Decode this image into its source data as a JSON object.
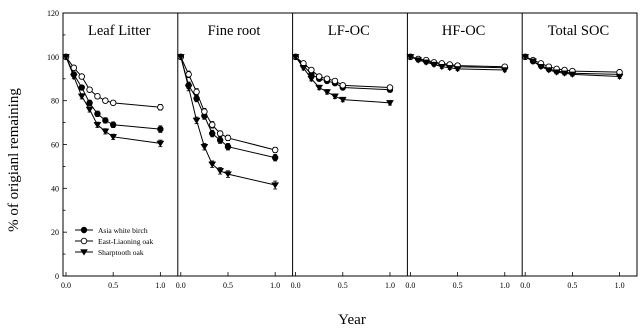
{
  "chart_data": {
    "type": "line",
    "ylabel": "% of origianl remaining",
    "xlabel": "Year",
    "ylim": [
      0,
      120
    ],
    "xlim": [
      0,
      1.1
    ],
    "y_ticks": [
      "0",
      "20",
      "40",
      "60",
      "80",
      "100",
      "120"
    ],
    "x_ticks": [
      "0.0",
      "0.5",
      "1.0"
    ],
    "x": [
      0,
      0.083,
      0.167,
      0.25,
      0.333,
      0.417,
      0.5,
      1.0
    ],
    "legend": {
      "placement": "bottom-left",
      "entries": [
        {
          "name": "Asia white birch",
          "marker": "circle-filled"
        },
        {
          "name": "East-Liaoning oak",
          "marker": "circle-open"
        },
        {
          "name": "Sharptooth oak",
          "marker": "triangle-down-filled"
        }
      ]
    },
    "panels": [
      {
        "title": "Leaf Litter",
        "series": [
          {
            "name": "Asia white birch",
            "values": [
              100,
              92,
              86,
              79,
              74,
              71,
              69,
              67
            ],
            "errors": [
              0,
              1,
              1,
              1.2,
              1.2,
              1.2,
              1.3,
              1.5
            ]
          },
          {
            "name": "East-Liaoning oak",
            "values": [
              100,
              95,
              91,
              85,
              82,
              80,
              79,
              77
            ],
            "errors": [
              0,
              1,
              1,
              1,
              1,
              1,
              1,
              1.3
            ]
          },
          {
            "name": "Sharptooth oak",
            "values": [
              100,
              91,
              82,
              76,
              69,
              66,
              63.5,
              60.5
            ],
            "errors": [
              0,
              1,
              1.2,
              1.2,
              1.2,
              1.2,
              1.2,
              1.5
            ]
          }
        ]
      },
      {
        "title": "Fine root",
        "series": [
          {
            "name": "Asia white birch",
            "values": [
              100,
              87,
              81,
              73,
              65,
              62,
              59,
              54
            ],
            "errors": [
              0,
              1.5,
              1.5,
              1.5,
              1.5,
              1.5,
              1.5,
              1.5
            ]
          },
          {
            "name": "East-Liaoning oak",
            "values": [
              100,
              92,
              84,
              75,
              69,
              65,
              63,
              57.5
            ],
            "errors": [
              0,
              1.5,
              1.5,
              1.5,
              1.5,
              1.2,
              1.2,
              1.2
            ]
          },
          {
            "name": "Sharptooth oak",
            "values": [
              100,
              86,
              71,
              59,
              51,
              48,
              46.5,
              41.5
            ],
            "errors": [
              0,
              1.5,
              1.5,
              1.5,
              1.5,
              1.5,
              1.5,
              1.8
            ]
          }
        ]
      },
      {
        "title": "LF-OC",
        "series": [
          {
            "name": "Asia white birch",
            "values": [
              100,
              96,
              92,
              90,
              89,
              88,
              86,
              85
            ],
            "errors": [
              0,
              1,
              1,
              1,
              1,
              1,
              1,
              1
            ]
          },
          {
            "name": "East-Liaoning oak",
            "values": [
              100,
              97,
              94,
              91,
              90,
              89,
              87,
              86
            ],
            "errors": [
              0,
              1,
              1,
              1,
              1,
              1,
              1,
              1
            ]
          },
          {
            "name": "Sharptooth oak",
            "values": [
              100,
              95,
              90,
              86,
              84,
              82,
              80.5,
              79
            ],
            "errors": [
              0,
              1,
              1,
              1,
              1,
              1,
              1,
              1
            ]
          }
        ]
      },
      {
        "title": "HF-OC",
        "series": [
          {
            "name": "Asia white birch",
            "values": [
              100,
              99,
              98,
              97,
              96.5,
              96,
              95.5,
              95
            ],
            "errors": [
              0,
              0.8,
              0.8,
              0.8,
              0.8,
              0.8,
              0.8,
              0.8
            ]
          },
          {
            "name": "East-Liaoning oak",
            "values": [
              100,
              99,
              98.5,
              97.5,
              97,
              96.5,
              96,
              95.5
            ],
            "errors": [
              0,
              0.8,
              0.8,
              0.8,
              0.8,
              0.8,
              0.8,
              0.8
            ]
          },
          {
            "name": "Sharptooth oak",
            "values": [
              100,
              98.5,
              97.5,
              96.5,
              95.5,
              95,
              94.5,
              94
            ],
            "errors": [
              0,
              0.8,
              0.8,
              0.8,
              0.8,
              0.8,
              0.8,
              0.8
            ]
          }
        ]
      },
      {
        "title": "Total SOC",
        "series": [
          {
            "name": "Asia white birch",
            "values": [
              100,
              98,
              96,
              94.5,
              93.5,
              93,
              92.5,
              92
            ],
            "errors": [
              0,
              0.8,
              0.8,
              0.8,
              0.8,
              0.8,
              0.8,
              0.8
            ]
          },
          {
            "name": "East-Liaoning oak",
            "values": [
              100,
              98.5,
              97,
              95.5,
              94.5,
              94,
              93.5,
              93
            ],
            "errors": [
              0,
              0.8,
              0.8,
              0.8,
              0.8,
              0.8,
              0.8,
              0.8
            ]
          },
          {
            "name": "Sharptooth oak",
            "values": [
              100,
              98,
              95.5,
              94,
              93,
              92.5,
              92,
              91
            ],
            "errors": [
              0,
              0.8,
              0.8,
              0.8,
              0.8,
              0.8,
              0.8,
              0.8
            ]
          }
        ]
      }
    ]
  }
}
